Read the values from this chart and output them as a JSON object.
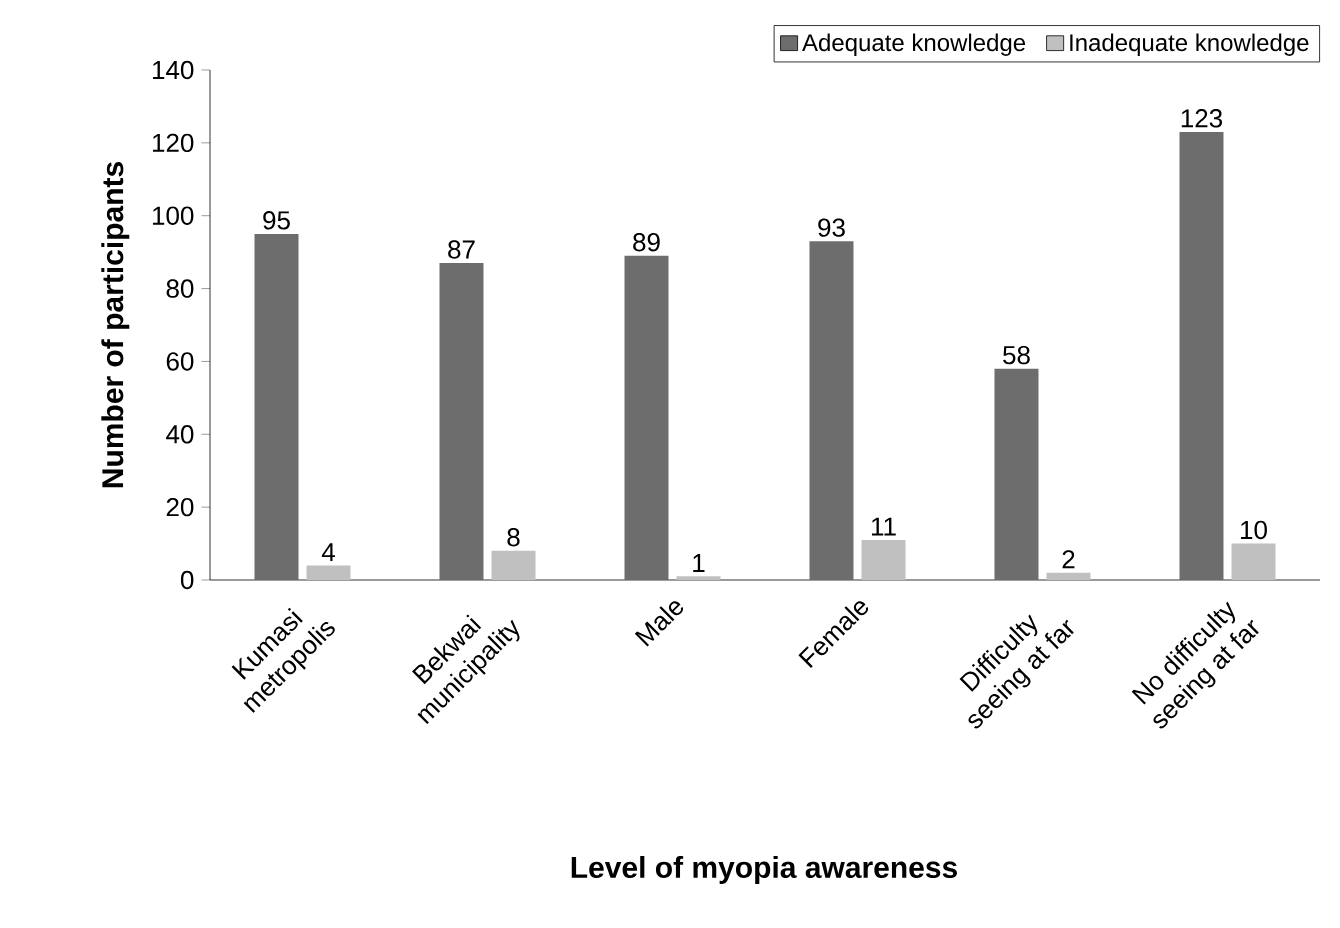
{
  "chart_data": {
    "type": "bar",
    "xlabel": "Level of myopia awareness",
    "ylabel": "Number of participants",
    "categories": [
      "Kumasi metropolis",
      "Bekwai municipality",
      "Male",
      "Female",
      "Difficulty seeing at far",
      "No difficulty seeing at far"
    ],
    "series": [
      {
        "name": "Adequate knowledge",
        "color": "#6d6d6d",
        "values": [
          95,
          87,
          89,
          93,
          58,
          123
        ]
      },
      {
        "name": "Inadequate knowledge",
        "color": "#c0c0c0",
        "values": [
          4,
          8,
          1,
          11,
          2,
          10
        ]
      }
    ],
    "ylim": [
      0,
      140
    ],
    "yticks": [
      0,
      20,
      40,
      60,
      80,
      100,
      120,
      140
    ],
    "data_labels": true,
    "legend": "top right"
  }
}
